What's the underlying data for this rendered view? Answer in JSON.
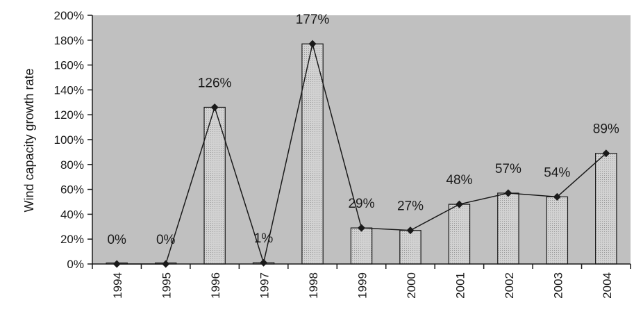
{
  "chart_data": {
    "type": "bar",
    "ylabel": "Wind capacity growth rate",
    "xlabel": "",
    "ylim": [
      0,
      200
    ],
    "y_ticks": [
      0,
      20,
      40,
      60,
      80,
      100,
      120,
      140,
      160,
      180,
      200
    ],
    "y_tick_labels": [
      "0%",
      "20%",
      "40%",
      "60%",
      "80%",
      "100%",
      "120%",
      "140%",
      "160%",
      "180%",
      "200%"
    ],
    "categories": [
      "1994",
      "1995",
      "1996",
      "1997",
      "1998",
      "1999",
      "2000",
      "2001",
      "2002",
      "2003",
      "2004"
    ],
    "values": [
      0,
      0,
      126,
      1,
      177,
      29,
      27,
      48,
      57,
      54,
      89
    ],
    "data_labels": [
      "0%",
      "0%",
      "126%",
      "1%",
      "177%",
      "29%",
      "27%",
      "48%",
      "57%",
      "54%",
      "89%"
    ],
    "series": [
      {
        "values": [
          0,
          0,
          126,
          1,
          177,
          29,
          27,
          48,
          57,
          54,
          89
        ],
        "mark": "bar"
      },
      {
        "values": [
          0,
          0,
          126,
          1,
          177,
          29,
          27,
          48,
          57,
          54,
          89
        ],
        "mark": "line",
        "marker": "diamond"
      }
    ],
    "grid": false,
    "legend": "none",
    "colors": {
      "plot_bg": "#c0c0c0",
      "bar_fill": "#d2d2d2",
      "bar_stroke": "#1a1a1a",
      "line": "#1a1a1a",
      "marker": "#1a1a1a"
    }
  }
}
